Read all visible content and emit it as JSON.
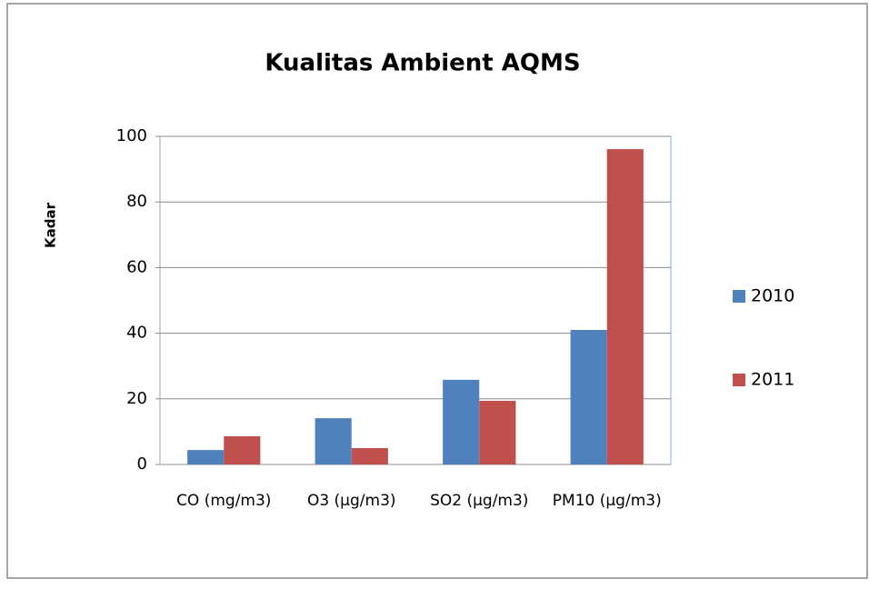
{
  "chart_data": {
    "type": "bar",
    "title": "Kualitas Ambient AQMS",
    "y_label": "Kadar",
    "categories": [
      "CO (mg/m3)",
      "O3 (µg/m3)",
      "SO2  (µg/m3)",
      "PM10 (µg/m3)"
    ],
    "series": [
      {
        "name": "2010",
        "color": "#4f81bd",
        "values": [
          4.4,
          14.1,
          25.8,
          41.0
        ]
      },
      {
        "name": "2011",
        "color": "#c0504d",
        "values": [
          8.6,
          5.0,
          19.4,
          96.1
        ]
      }
    ],
    "ylim": [
      0,
      100
    ],
    "yticks": [
      0,
      20,
      40,
      60,
      80,
      100
    ],
    "grid": true,
    "legend": "right"
  }
}
